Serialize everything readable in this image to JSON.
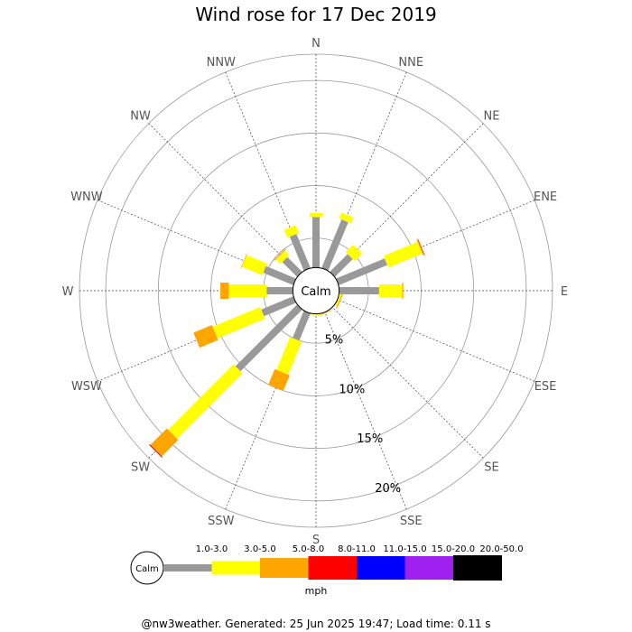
{
  "chart_data": {
    "type": "wind_rose",
    "title": "Wind rose for 17 Dec 2019",
    "unit": "mph",
    "calm_label": "Calm",
    "directions": [
      "N",
      "NNE",
      "NE",
      "ENE",
      "E",
      "ESE",
      "SE",
      "SSE",
      "S",
      "SSW",
      "SW",
      "WSW",
      "W",
      "WNW",
      "NW",
      "NNW"
    ],
    "rings_percent": [
      5,
      10,
      15,
      20
    ],
    "ring_labels": [
      "5%",
      "10%",
      "15%",
      "20%"
    ],
    "rmax_percent": 22.5,
    "calm_radius_percent": 2.2,
    "bins": [
      {
        "label": "1.0-3.0",
        "color": "#999999"
      },
      {
        "label": "3.0-5.0",
        "color": "#ffff00"
      },
      {
        "label": "5.0-8.0",
        "color": "#ffa500"
      },
      {
        "label": "8.0-11.0",
        "color": "#ff0000"
      },
      {
        "label": "11.0-15.0",
        "color": "#0000ff"
      },
      {
        "label": "15.0-20.0",
        "color": "#a020f0"
      },
      {
        "label": "20.0-50.0",
        "color": "#000000"
      }
    ],
    "series": [
      {
        "direction": "N",
        "cumulative": [
          7.0,
          7.4
        ]
      },
      {
        "direction": "NNE",
        "cumulative": [
          7.2,
          7.8
        ]
      },
      {
        "direction": "NE",
        "cumulative": [
          4.6,
          5.6
        ]
      },
      {
        "direction": "ENE",
        "cumulative": [
          7.2,
          10.7,
          10.8,
          10.85
        ]
      },
      {
        "direction": "E",
        "cumulative": [
          6.0,
          8.2,
          8.3
        ]
      },
      {
        "direction": "ESE",
        "cumulative": [
          2.0,
          2.4,
          2.5
        ]
      },
      {
        "direction": "SE",
        "cumulative": [
          0.8
        ]
      },
      {
        "direction": "SSE",
        "cumulative": [
          1.5,
          2.1,
          2.3
        ]
      },
      {
        "direction": "S",
        "cumulative": [
          2.1,
          2.3
        ]
      },
      {
        "direction": "SSW",
        "cumulative": [
          5.0,
          8.4,
          10.0
        ]
      },
      {
        "direction": "SW",
        "cumulative": [
          10.5,
          19.3,
          21.5,
          21.6
        ]
      },
      {
        "direction": "WSW",
        "cumulative": [
          5.5,
          10.4,
          12.3
        ]
      },
      {
        "direction": "W",
        "cumulative": [
          4.7,
          8.3,
          9.1
        ]
      },
      {
        "direction": "WNW",
        "cumulative": [
          5.3,
          7.4,
          7.45
        ]
      },
      {
        "direction": "NW",
        "cumulative": [
          4.2,
          4.8,
          4.9
        ]
      },
      {
        "direction": "NNW",
        "cumulative": [
          5.7,
          6.5
        ]
      }
    ]
  },
  "footer": "@nw3weather. Generated: 25 Jun 2025 19:47; Load time: 0.11 s"
}
